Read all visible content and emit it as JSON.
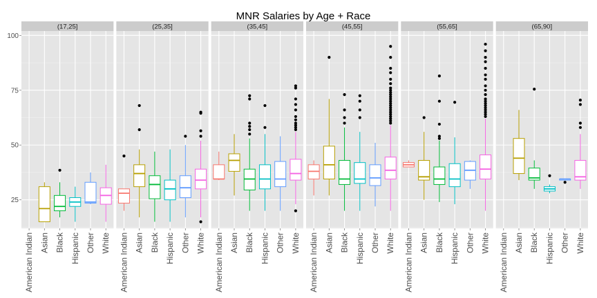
{
  "chart_data": {
    "type": "box",
    "title": "MNR Salaries by Age + Race",
    "xlabel": "",
    "ylabel": "",
    "ylim": [
      12,
      102
    ],
    "yticks": [
      25,
      50,
      75,
      100
    ],
    "grid": true,
    "legend": "none",
    "categories": [
      "American Indian",
      "Asian",
      "Black",
      "Hispanic",
      "Other",
      "White"
    ],
    "colors": {
      "American Indian": "#F8766D",
      "Asian": "#B79F00",
      "Black": "#00BA38",
      "Hispanic": "#00BFC4",
      "Other": "#619CFF",
      "White": "#F564E3"
    },
    "panels": [
      {
        "label": "(17,25]",
        "boxes": [
          {
            "category": "Asian",
            "whisker_low": 15,
            "q1": 15,
            "median": 21,
            "q3": 31,
            "whisker_high": 33,
            "outliers": []
          },
          {
            "category": "Black",
            "whisker_low": 17,
            "q1": 20,
            "median": 22,
            "q3": 27,
            "whisker_high": 33,
            "outliers": [
              38.5
            ]
          },
          {
            "category": "Hispanic",
            "whisker_low": 15,
            "q1": 22,
            "median": 24,
            "q3": 26,
            "whisker_high": 31,
            "outliers": []
          },
          {
            "category": "Other",
            "whisker_low": 23,
            "q1": 23.5,
            "median": 24,
            "q3": 33,
            "whisker_high": 37.5,
            "outliers": []
          },
          {
            "category": "White",
            "whisker_low": 15,
            "q1": 23,
            "median": 27,
            "q3": 30.5,
            "whisker_high": 41,
            "outliers": []
          }
        ]
      },
      {
        "label": "(25,35]",
        "boxes": [
          {
            "category": "American Indian",
            "whisker_low": 20,
            "q1": 23.5,
            "median": 28,
            "q3": 30,
            "whisker_high": 30,
            "outliers": [
              45
            ]
          },
          {
            "category": "Asian",
            "whisker_low": 17,
            "q1": 31,
            "median": 37,
            "q3": 41,
            "whisker_high": 48,
            "outliers": [
              57,
              68
            ]
          },
          {
            "category": "Black",
            "whisker_low": 15,
            "q1": 25.5,
            "median": 32,
            "q3": 36,
            "whisker_high": 47,
            "outliers": []
          },
          {
            "category": "Hispanic",
            "whisker_low": 15,
            "q1": 25,
            "median": 30,
            "q3": 34,
            "whisker_high": 48,
            "outliers": []
          },
          {
            "category": "Other",
            "whisker_low": 17,
            "q1": 26,
            "median": 30.5,
            "q3": 36,
            "whisker_high": 50,
            "outliers": [
              54
            ]
          },
          {
            "category": "White",
            "whisker_low": 17,
            "q1": 30,
            "median": 34,
            "q3": 39,
            "whisker_high": 52,
            "outliers": [
              15,
              54,
              56.5,
              64.5,
              65
            ]
          }
        ]
      },
      {
        "label": "(35,45]",
        "boxes": [
          {
            "category": "American Indian",
            "whisker_low": 34,
            "q1": 34.5,
            "median": 34.5,
            "q3": 41,
            "whisker_high": 47,
            "outliers": []
          },
          {
            "category": "Asian",
            "whisker_low": 27,
            "q1": 38,
            "median": 43,
            "q3": 46,
            "whisker_high": 55,
            "outliers": []
          },
          {
            "category": "Black",
            "whisker_low": 20,
            "q1": 29.5,
            "median": 34.5,
            "q3": 39,
            "whisker_high": 53,
            "outliers": [
              55,
              57,
              58.5,
              60,
              71,
              72.5
            ]
          },
          {
            "category": "Hispanic",
            "whisker_low": 20,
            "q1": 30,
            "median": 34.5,
            "q3": 41,
            "whisker_high": 55,
            "outliers": [
              58,
              68
            ]
          },
          {
            "category": "Other",
            "whisker_low": 20,
            "q1": 31,
            "median": 34.5,
            "q3": 42.5,
            "whisker_high": 54,
            "outliers": []
          },
          {
            "category": "White",
            "whisker_low": 23,
            "q1": 34,
            "median": 37,
            "q3": 43.5,
            "whisker_high": 56,
            "outliers": [
              20,
              57,
              58,
              59,
              60,
              61.5,
              63,
              66,
              68.5,
              71,
              76,
              77
            ]
          }
        ]
      },
      {
        "label": "(45,55]",
        "boxes": [
          {
            "category": "American Indian",
            "whisker_low": 27,
            "q1": 34.5,
            "median": 38,
            "q3": 41,
            "whisker_high": 43,
            "outliers": []
          },
          {
            "category": "Asian",
            "whisker_low": 27,
            "q1": 34.5,
            "median": 41,
            "q3": 49.5,
            "whisker_high": 71,
            "outliers": [
              90
            ]
          },
          {
            "category": "Black",
            "whisker_low": 20,
            "q1": 32,
            "median": 34.5,
            "q3": 43,
            "whisker_high": 58,
            "outliers": [
              60,
              62.5,
              66,
              73
            ]
          },
          {
            "category": "Hispanic",
            "whisker_low": 20,
            "q1": 32.5,
            "median": 34.5,
            "q3": 42,
            "whisker_high": 56,
            "outliers": [
              62.5,
              66,
              70,
              72.5
            ]
          },
          {
            "category": "Other",
            "whisker_low": 22,
            "q1": 31.5,
            "median": 35,
            "q3": 41,
            "whisker_high": 51,
            "outliers": []
          },
          {
            "category": "White",
            "whisker_low": 20,
            "q1": 34.5,
            "median": 38.5,
            "q3": 44.5,
            "whisker_high": 59,
            "outliers": [
              60,
              61,
              62,
              63,
              64,
              65,
              66,
              67,
              68,
              69,
              70,
              71,
              72,
              73,
              74,
              75,
              76,
              78,
              80,
              83,
              85,
              90,
              95
            ]
          }
        ]
      },
      {
        "label": "(55,65]",
        "boxes": [
          {
            "category": "American Indian",
            "whisker_low": 40,
            "q1": 40,
            "median": 41,
            "q3": 42,
            "whisker_high": 43,
            "outliers": []
          },
          {
            "category": "Asian",
            "whisker_low": 25,
            "q1": 34,
            "median": 35.5,
            "q3": 43,
            "whisker_high": 56,
            "outliers": [
              62.5
            ]
          },
          {
            "category": "Black",
            "whisker_low": 24,
            "q1": 32,
            "median": 34.5,
            "q3": 40,
            "whisker_high": 52,
            "outliers": [
              53,
              54,
              59.5,
              70,
              81.5
            ]
          },
          {
            "category": "Hispanic",
            "whisker_low": 23,
            "q1": 31,
            "median": 34.5,
            "q3": 41.5,
            "whisker_high": 53.5,
            "outliers": [
              69.5
            ]
          },
          {
            "category": "Other",
            "whisker_low": 30,
            "q1": 34,
            "median": 38.5,
            "q3": 42.5,
            "whisker_high": 43,
            "outliers": []
          },
          {
            "category": "White",
            "whisker_low": 20,
            "q1": 34.5,
            "median": 39,
            "q3": 45.5,
            "whisker_high": 62,
            "outliers": [
              63,
              64,
              65,
              66,
              67,
              68,
              69,
              70,
              71,
              73,
              75,
              77,
              80,
              82,
              85,
              88,
              90,
              93,
              96
            ]
          }
        ]
      },
      {
        "label": "(65,90]",
        "boxes": [
          {
            "category": "Asian",
            "whisker_low": 34,
            "q1": 37,
            "median": 44,
            "q3": 53,
            "whisker_high": 66,
            "outliers": []
          },
          {
            "category": "Black",
            "whisker_low": 30,
            "q1": 34,
            "median": 35,
            "q3": 39.5,
            "whisker_high": 43,
            "outliers": [
              75.5
            ]
          },
          {
            "category": "Hispanic",
            "whisker_low": 28,
            "q1": 29,
            "median": 30,
            "q3": 31,
            "whisker_high": 32,
            "outliers": [
              36
            ]
          },
          {
            "category": "Other",
            "whisker_low": 34,
            "q1": 34,
            "median": 34.5,
            "q3": 34.5,
            "whisker_high": 34.5,
            "outliers": [
              33
            ]
          },
          {
            "category": "White",
            "whisker_low": 30,
            "q1": 34,
            "median": 35.5,
            "q3": 43,
            "whisker_high": 55,
            "outliers": [
              58,
              60,
              68.5,
              70.5
            ]
          }
        ]
      }
    ]
  }
}
